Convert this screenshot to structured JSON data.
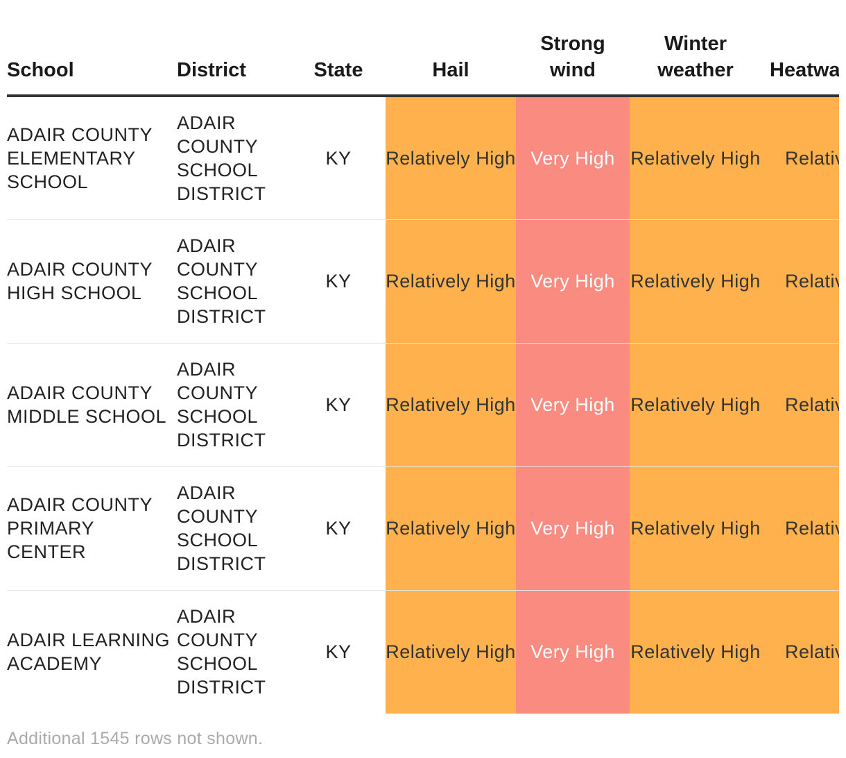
{
  "table": {
    "headers": {
      "school": "School",
      "district": "District",
      "state": "State",
      "hail": "Hail",
      "strong_wind": "Strong wind",
      "winter_weather": "Winter weather",
      "heatwave": "Heatwave"
    },
    "rows": [
      {
        "school": "ADAIR COUNTY ELEMENTARY SCHOOL",
        "district": "ADAIR COUNTY SCHOOL DISTRICT",
        "state": "KY",
        "hail": "Relatively High",
        "strong_wind": "Very High",
        "winter_weather": "Relatively High",
        "heatwave": "Relatively High"
      },
      {
        "school": "ADAIR COUNTY HIGH SCHOOL",
        "district": "ADAIR COUNTY SCHOOL DISTRICT",
        "state": "KY",
        "hail": "Relatively High",
        "strong_wind": "Very High",
        "winter_weather": "Relatively High",
        "heatwave": "Relatively High"
      },
      {
        "school": "ADAIR COUNTY MIDDLE SCHOOL",
        "district": "ADAIR COUNTY SCHOOL DISTRICT",
        "state": "KY",
        "hail": "Relatively High",
        "strong_wind": "Very High",
        "winter_weather": "Relatively High",
        "heatwave": "Relatively High"
      },
      {
        "school": "ADAIR COUNTY PRIMARY CENTER",
        "district": "ADAIR COUNTY SCHOOL DISTRICT",
        "state": "KY",
        "hail": "Relatively High",
        "strong_wind": "Very High",
        "winter_weather": "Relatively High",
        "heatwave": "Relatively High"
      },
      {
        "school": "ADAIR LEARNING ACADEMY",
        "district": "ADAIR COUNTY SCHOOL DISTRICT",
        "state": "KY",
        "hail": "Relatively High",
        "strong_wind": "Very High",
        "winter_weather": "Relatively High",
        "heatwave": "Relatively High"
      }
    ],
    "footnote": "Additional 1545 rows not shown."
  },
  "colors": {
    "relatively_high": "#ffb14e",
    "very_high": "#fa8b80",
    "header_rule": "#333333"
  }
}
